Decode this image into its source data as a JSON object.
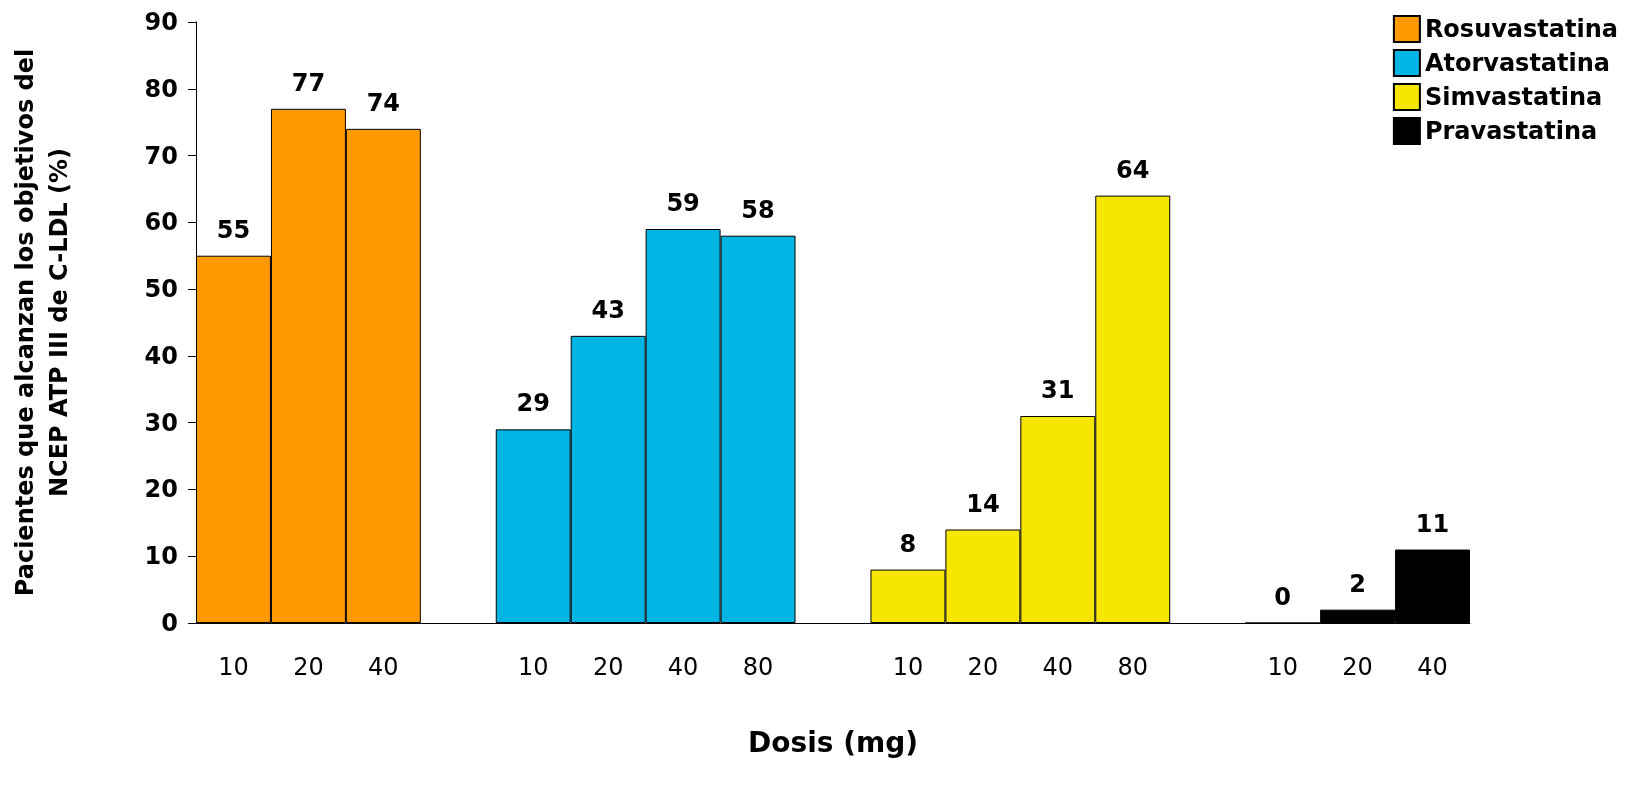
{
  "chart_data": {
    "type": "bar",
    "xlabel": "Dosis (mg)",
    "ylabel": "Pacientes que alcanzan los objetivos del\nNCEP ATP III de C-LDL (%)",
    "categories": [
      "10",
      "20",
      "40",
      null,
      "10",
      "20",
      "40",
      "80",
      null,
      "10",
      "20",
      "40",
      "80",
      null,
      "10",
      "20",
      "40"
    ],
    "series": [
      {
        "name": "Rosuvastatina",
        "color": "#ff9900",
        "values": [
          55,
          77,
          74,
          null,
          null,
          null,
          null,
          null,
          null,
          null,
          null,
          null,
          null,
          null,
          null,
          null,
          null
        ]
      },
      {
        "name": "Atorvastatina",
        "color": "#00b4e4",
        "values": [
          null,
          null,
          null,
          null,
          29,
          43,
          59,
          58,
          null,
          null,
          null,
          null,
          null,
          null,
          null,
          null,
          null
        ]
      },
      {
        "name": "Simvastatina",
        "color": "#f7e600",
        "values": [
          null,
          null,
          null,
          null,
          null,
          null,
          null,
          null,
          null,
          8,
          14,
          31,
          64,
          null,
          null,
          null,
          null
        ]
      },
      {
        "name": "Pravastatina",
        "color": "#000000",
        "values": [
          null,
          null,
          null,
          null,
          null,
          null,
          null,
          null,
          null,
          null,
          null,
          null,
          null,
          null,
          0,
          2,
          11
        ]
      }
    ],
    "ylim": [
      0,
      90
    ],
    "yticks": [
      0,
      10,
      20,
      30,
      40,
      50,
      60,
      70,
      80,
      90
    ],
    "grid": false,
    "legend": "top right",
    "data_labels": true
  }
}
